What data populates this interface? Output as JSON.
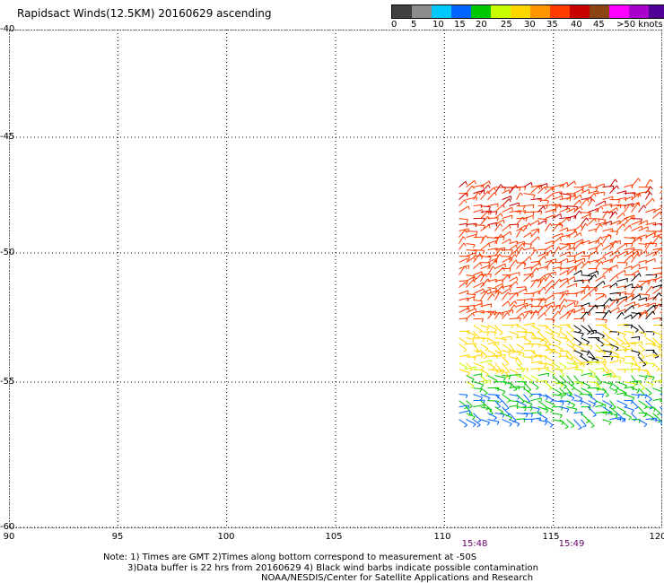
{
  "title": "Rapidsact Winds(12.5KM) 20160629 ascending",
  "colorbar": {
    "colors": [
      "#404040",
      "#8c8c8c",
      "#00c8ff",
      "#0064ff",
      "#00c800",
      "#c8ff00",
      "#ffd700",
      "#ff9600",
      "#ff3c00",
      "#c80000",
      "#8b4513",
      "#ff00ff",
      "#aa00cc",
      "#500096"
    ],
    "labels": [
      "0",
      "5",
      "10",
      "15",
      "20",
      "25",
      "30",
      "35",
      "40",
      "45",
      ">50 knots"
    ]
  },
  "axes": {
    "lat_ticks": [
      "-40",
      "-45",
      "-50",
      "-55",
      "-60"
    ],
    "lon_ticks": [
      "90",
      "95",
      "100",
      "105",
      "110",
      "115",
      "120"
    ]
  },
  "times": [
    "15:48",
    "15:49"
  ],
  "notes": {
    "line1": "Note: 1) Times are GMT 2)Times along bottom correspond to measurement at -50S",
    "line2": "3)Data buffer is 22 hrs from 20160629 4) Black wind barbs indicate possible contamination",
    "line3": "NOAA/NESDIS/Center for Satellite Applications and Research"
  },
  "map_data": {
    "lon_range": [
      90,
      120
    ],
    "lat_range": [
      -60,
      -40
    ],
    "swath": {
      "lon_range": [
        110.5,
        120
      ],
      "lat_range": [
        -56.5,
        -47
      ]
    },
    "bands": [
      {
        "lat_from": -47.5,
        "lat_to": -52.5,
        "speed_knots": "35-40",
        "color": "#ff3c00"
      },
      {
        "lat_from": -52.5,
        "lat_to": -54.5,
        "speed_knots": "25-30",
        "color": "#ffd700"
      },
      {
        "lat_from": -54.5,
        "lat_to": -56.5,
        "speed_knots": "15-20",
        "color": "#00c800"
      }
    ]
  }
}
